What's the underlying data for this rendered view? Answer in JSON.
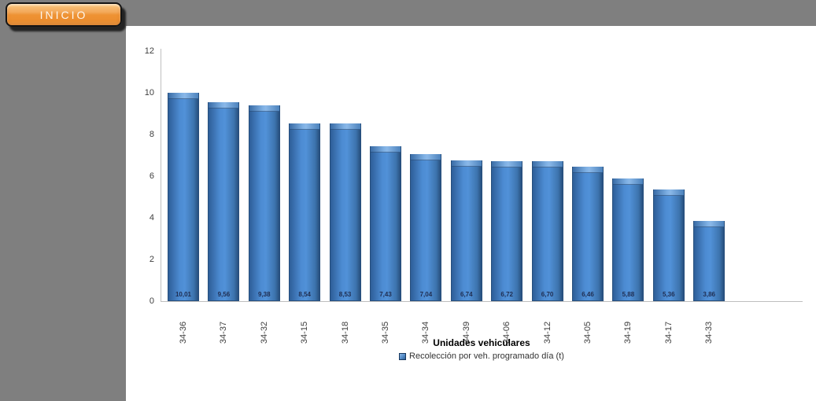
{
  "header": {
    "inicio_label": "INICIO",
    "bar_color": "#7F7F7F",
    "button_color": "#EE9233"
  },
  "chart_data": {
    "type": "bar",
    "categories": [
      "34-36",
      "34-37",
      "34-32",
      "34-15",
      "34-18",
      "34-35",
      "34-34",
      "34-39",
      "34-06",
      "34-12",
      "34-05",
      "34-19",
      "34-17",
      "34-33"
    ],
    "values": [
      10.01,
      9.56,
      9.38,
      8.54,
      8.53,
      7.43,
      7.04,
      6.74,
      6.72,
      6.7,
      6.46,
      5.88,
      5.36,
      3.86
    ],
    "value_labels": [
      "10,01",
      "9,56",
      "9,38",
      "8,54",
      "8,53",
      "7,43",
      "7,04",
      "6,74",
      "6,72",
      "6,70",
      "6,46",
      "5,88",
      "5,36",
      "3,86"
    ],
    "series_name": "Recolección por veh. programado día (t)",
    "title": "",
    "xlabel": "Unidades vehiculares",
    "ylabel": "",
    "ylim": [
      0,
      12
    ],
    "yticks": [
      0,
      2,
      4,
      6,
      8,
      10,
      12
    ],
    "grid": false,
    "legend_position": "bottom",
    "bar_fill_color": "#4C8BD2",
    "bar_border_color": "#274F7D"
  }
}
